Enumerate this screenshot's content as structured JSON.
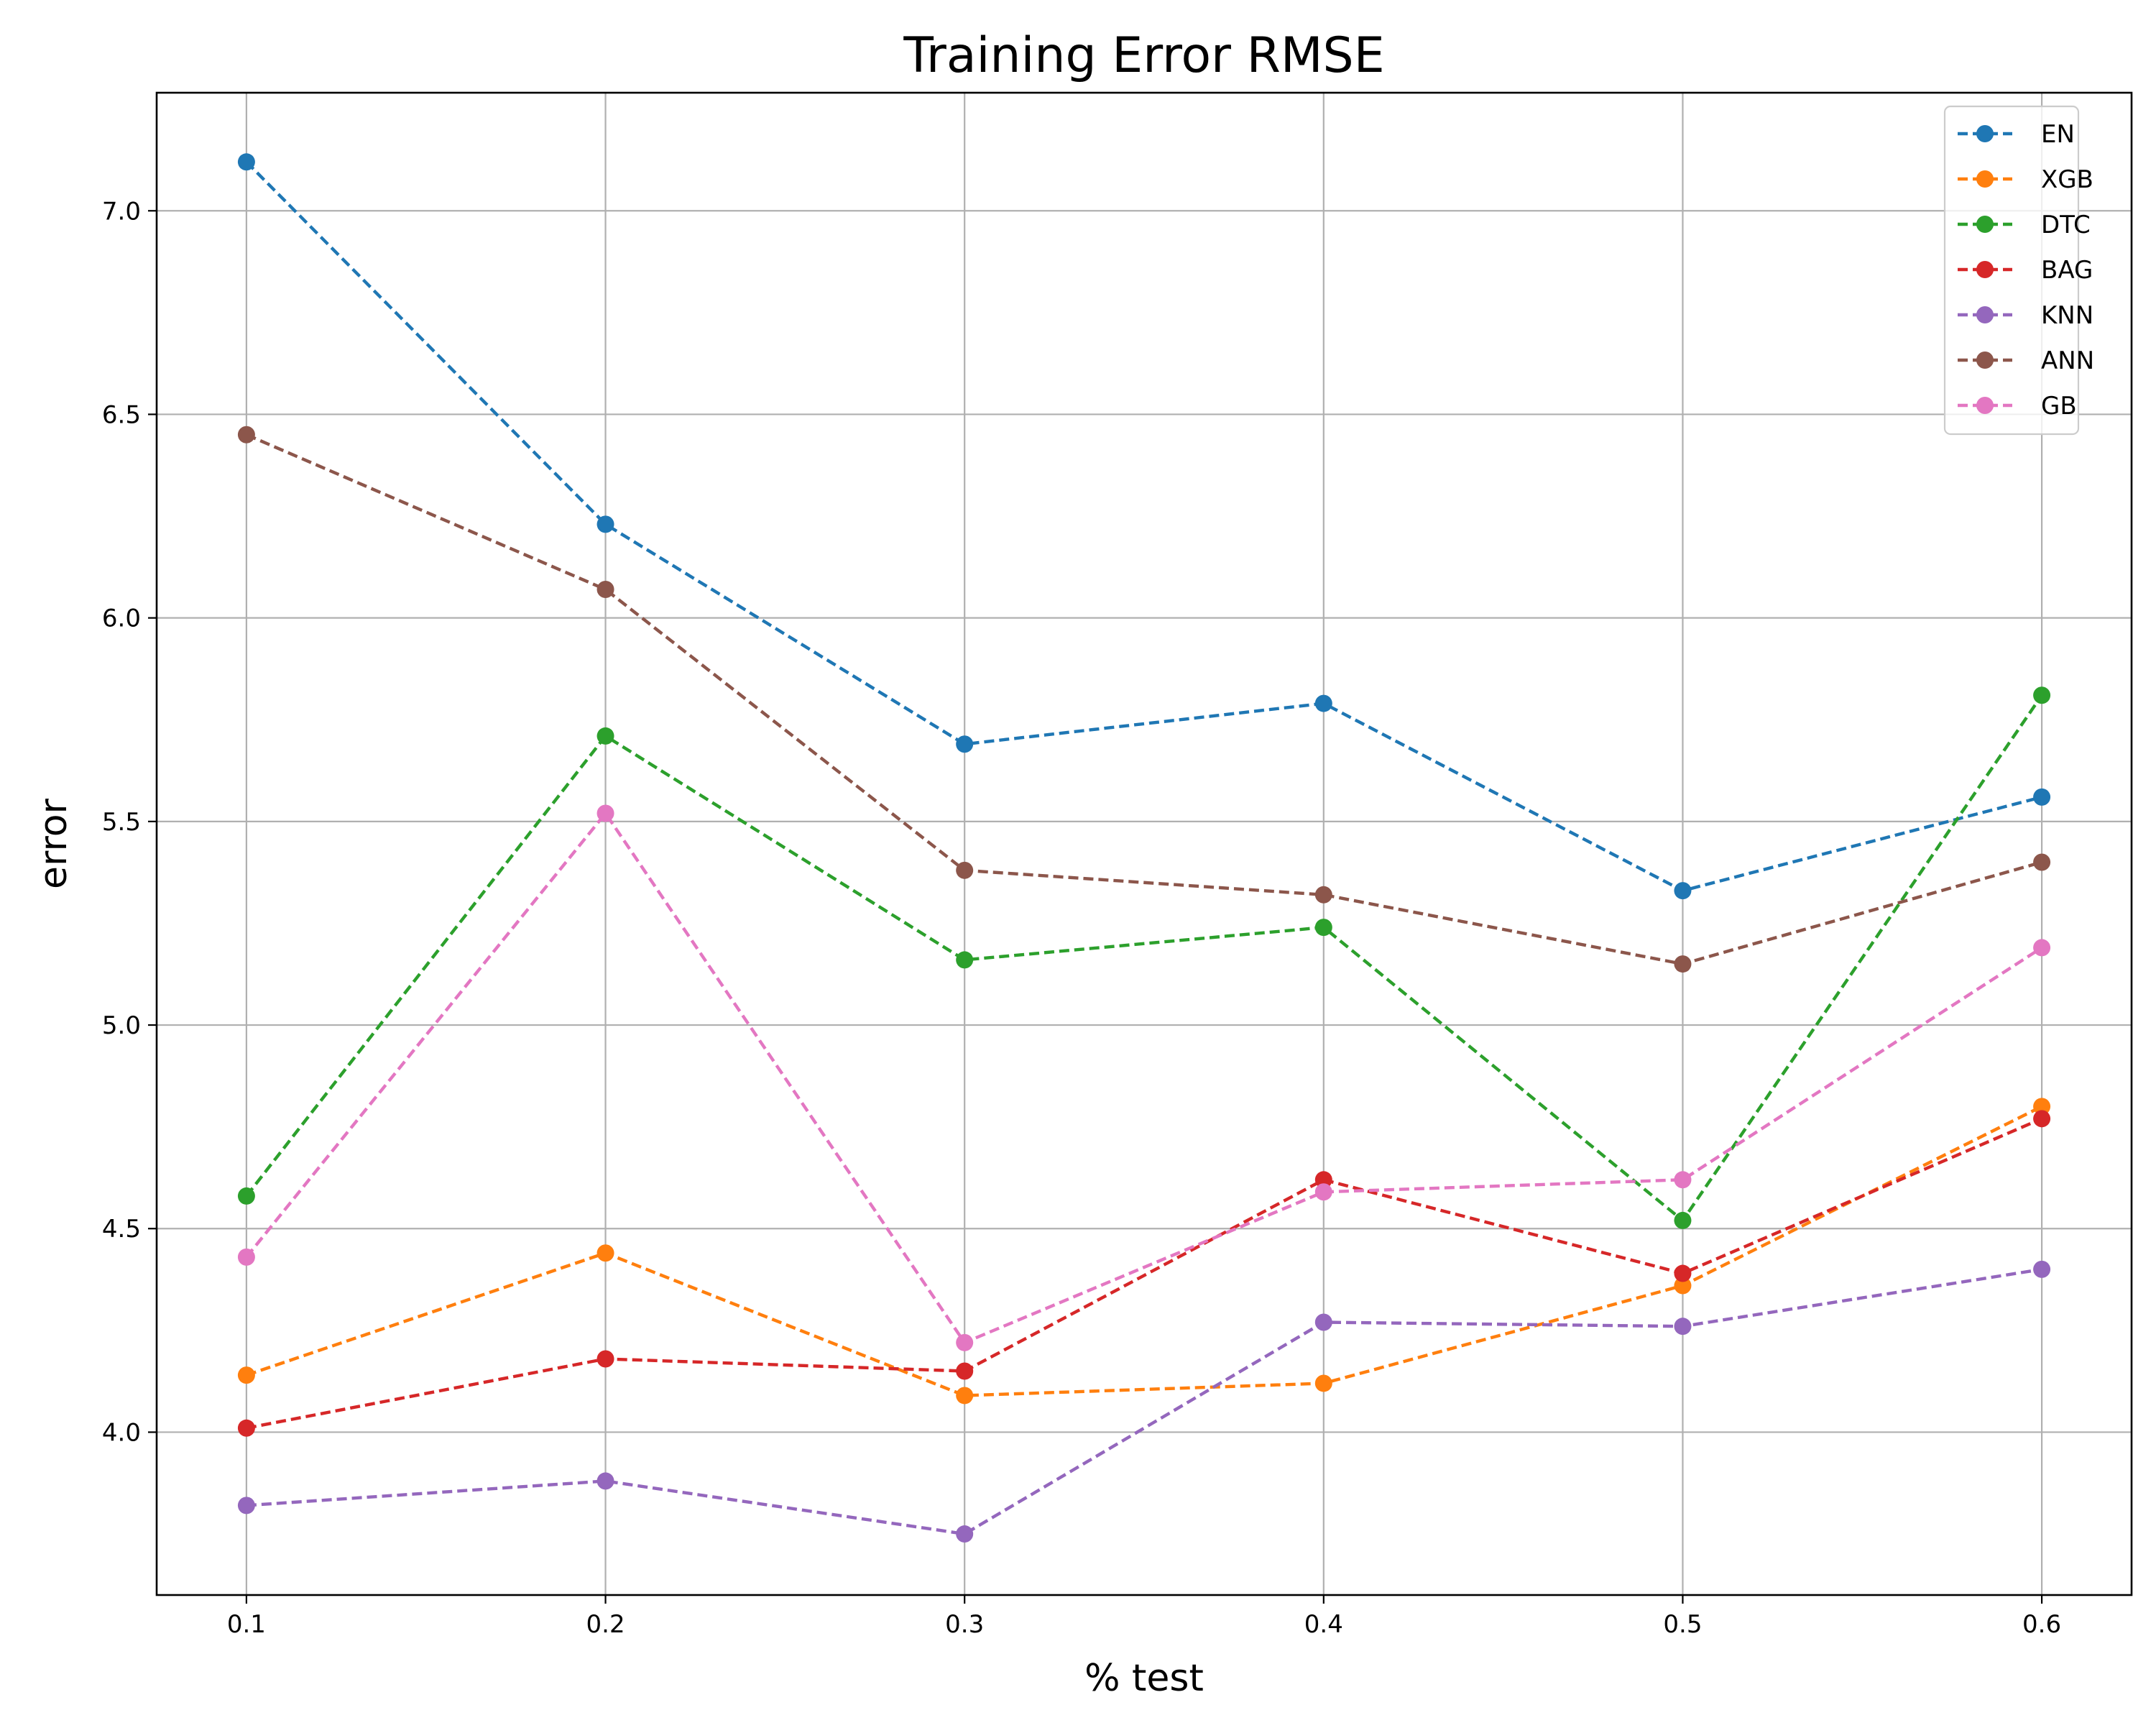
{
  "chart_data": {
    "type": "line",
    "title": "Training Error RMSE",
    "xlabel": "% test",
    "ylabel": "error",
    "x": [
      0.1,
      0.2,
      0.3,
      0.4,
      0.5,
      0.6
    ],
    "xticks": [
      "0.1",
      "0.2",
      "0.3",
      "0.4",
      "0.5",
      "0.6"
    ],
    "xlim": [
      0.075,
      0.625
    ],
    "yticks": [
      "4.0",
      "4.5",
      "5.0",
      "5.5",
      "6.0",
      "6.5",
      "7.0"
    ],
    "ylim": [
      3.6,
      7.29
    ],
    "grid": true,
    "line_style": "dashed",
    "marker": "circle",
    "legend_position": "top-right",
    "series": [
      {
        "name": "EN",
        "color": "#1f77b4",
        "values": [
          7.12,
          6.23,
          5.69,
          5.79,
          5.33,
          5.56
        ]
      },
      {
        "name": "XGB",
        "color": "#ff7f0e",
        "values": [
          4.14,
          4.44,
          4.09,
          4.12,
          4.36,
          4.8
        ]
      },
      {
        "name": "DTC",
        "color": "#2ca02c",
        "values": [
          4.58,
          5.71,
          5.16,
          5.24,
          4.52,
          5.81
        ]
      },
      {
        "name": "BAG",
        "color": "#d62728",
        "values": [
          4.01,
          4.18,
          4.15,
          4.62,
          4.39,
          4.77
        ]
      },
      {
        "name": "KNN",
        "color": "#9467bd",
        "values": [
          3.82,
          3.88,
          3.75,
          4.27,
          4.26,
          4.4
        ]
      },
      {
        "name": "ANN",
        "color": "#8c564b",
        "values": [
          6.45,
          6.07,
          5.38,
          5.32,
          5.15,
          5.4
        ]
      },
      {
        "name": "GB",
        "color": "#e377c2",
        "values": [
          4.43,
          5.52,
          4.22,
          4.59,
          4.62,
          5.19
        ]
      }
    ]
  }
}
